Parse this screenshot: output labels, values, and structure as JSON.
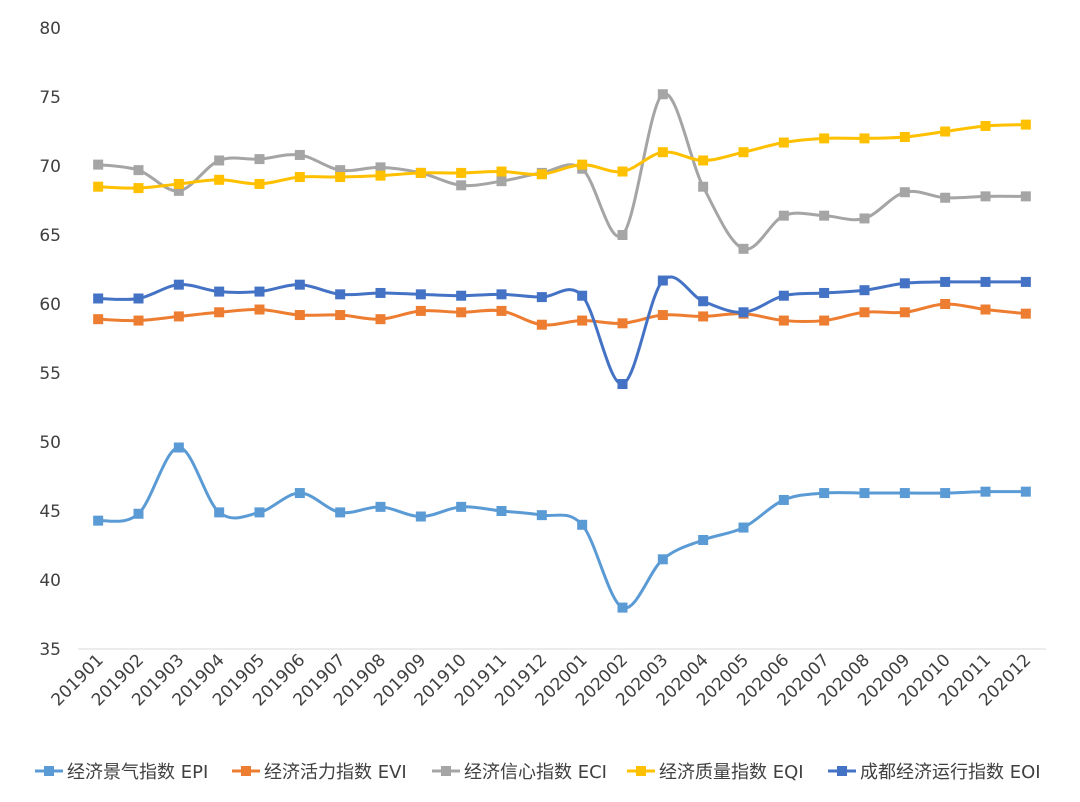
{
  "chart_data": {
    "type": "line",
    "x": [
      "201901",
      "201902",
      "201903",
      "201904",
      "201905",
      "201906",
      "201907",
      "201908",
      "201909",
      "201910",
      "201911",
      "201912",
      "202001",
      "202002",
      "202003",
      "202004",
      "202005",
      "202006",
      "202007",
      "202008",
      "202009",
      "202010",
      "202011",
      "202012"
    ],
    "ylim": [
      35,
      80
    ],
    "yticks": [
      35,
      40,
      45,
      50,
      55,
      60,
      65,
      70,
      75,
      80
    ],
    "grid": false,
    "legend_position": "bottom",
    "smooth": true,
    "marker": "square",
    "series": [
      {
        "name": "经济景气指数 EPI",
        "color": "#5B9BD5",
        "values": [
          44.3,
          44.8,
          49.6,
          44.9,
          44.9,
          46.3,
          44.9,
          45.3,
          44.6,
          45.3,
          45.0,
          44.7,
          44.0,
          38.0,
          41.5,
          42.9,
          43.8,
          45.8,
          46.3,
          46.3,
          46.3,
          46.3,
          46.4,
          46.4
        ]
      },
      {
        "name": "经济活力指数 EVI",
        "color": "#ED7D31",
        "values": [
          58.9,
          58.8,
          59.1,
          59.4,
          59.6,
          59.2,
          59.2,
          58.9,
          59.5,
          59.4,
          59.5,
          58.5,
          58.8,
          58.6,
          59.2,
          59.1,
          59.3,
          58.8,
          58.8,
          59.4,
          59.4,
          60.0,
          59.6,
          59.3
        ]
      },
      {
        "name": "经济信心指数 ECI",
        "color": "#A5A5A5",
        "values": [
          70.1,
          69.7,
          68.2,
          70.4,
          70.5,
          70.8,
          69.7,
          69.9,
          69.5,
          68.6,
          68.9,
          69.5,
          69.8,
          65.0,
          75.2,
          68.5,
          64.0,
          66.4,
          66.4,
          66.2,
          68.1,
          67.7,
          67.8,
          67.8
        ]
      },
      {
        "name": "经济质量指数 EQI",
        "color": "#FFC000",
        "values": [
          68.5,
          68.4,
          68.7,
          69.0,
          68.7,
          69.2,
          69.2,
          69.3,
          69.5,
          69.5,
          69.6,
          69.4,
          70.1,
          69.6,
          71.0,
          70.4,
          71.0,
          71.7,
          72.0,
          72.0,
          72.1,
          72.5,
          72.9,
          73.0
        ]
      },
      {
        "name": "成都经济运行指数 EOI",
        "color": "#4472C4",
        "values": [
          60.4,
          60.4,
          61.4,
          60.9,
          60.9,
          61.4,
          60.7,
          60.8,
          60.7,
          60.6,
          60.7,
          60.5,
          60.6,
          54.2,
          61.7,
          60.2,
          59.4,
          60.6,
          60.8,
          61.0,
          61.5,
          61.6,
          61.6,
          61.6
        ]
      }
    ]
  }
}
